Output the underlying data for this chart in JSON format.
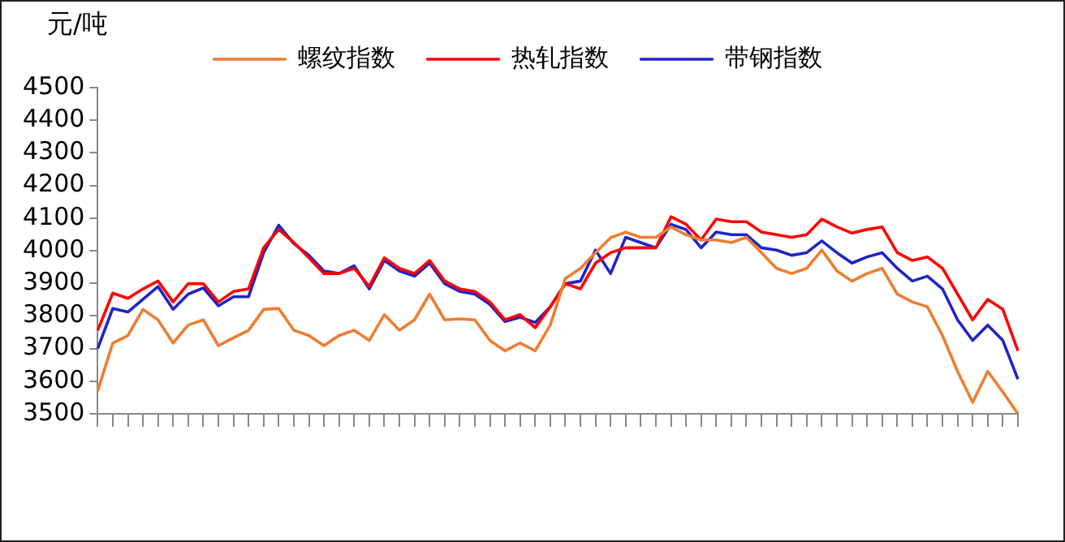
{
  "chart_data": {
    "type": "line",
    "ylabel": "元/吨",
    "categories": [
      null,
      null,
      null,
      null,
      null,
      null,
      null,
      null,
      null,
      null,
      null,
      null,
      null,
      null,
      null,
      null,
      null,
      null,
      null,
      null,
      null,
      null,
      null,
      null,
      null,
      null,
      null,
      null,
      null,
      null,
      null,
      null,
      null,
      null,
      null,
      null,
      null,
      null,
      null,
      null,
      null,
      null,
      null,
      null,
      null,
      null,
      null,
      null,
      null,
      null,
      null,
      null,
      null,
      null,
      null,
      null,
      null,
      null,
      null,
      null,
      null,
      null
    ],
    "series": [
      {
        "name": "螺纹指数",
        "color": "#ed7d31",
        "values": [
          3570,
          3717,
          3740,
          3820,
          3788,
          3717,
          3772,
          3788,
          3709,
          3733,
          3756,
          3820,
          3823,
          3756,
          3740,
          3709,
          3740,
          3756,
          3725,
          3804,
          3756,
          3788,
          3867,
          3788,
          3791,
          3788,
          3725,
          3693,
          3717,
          3693,
          3772,
          3915,
          3946,
          3994,
          4040,
          4057,
          4041,
          4041,
          4073,
          4049,
          4033,
          4033,
          4025,
          4041,
          3994,
          3946,
          3930,
          3946,
          4002,
          3938,
          3907,
          3930,
          3946,
          3867,
          3843,
          3828,
          3740,
          3630,
          3535,
          3630,
          3567,
          3500
        ]
      },
      {
        "name": "热轧指数",
        "color": "#ff0000",
        "values": [
          3756,
          3870,
          3854,
          3883,
          3907,
          3843,
          3899,
          3899,
          3843,
          3875,
          3883,
          4009,
          4065,
          4025,
          3978,
          3930,
          3930,
          3946,
          3891,
          3978,
          3946,
          3930,
          3970,
          3907,
          3883,
          3875,
          3843,
          3788,
          3804,
          3764,
          3828,
          3899,
          3883,
          3962,
          3994,
          4009,
          4009,
          4009,
          4104,
          4081,
          4033,
          4097,
          4089,
          4089,
          4057,
          4049,
          4041,
          4049,
          4097,
          4073,
          4054,
          4065,
          4073,
          3994,
          3970,
          3981,
          3946,
          3867,
          3788,
          3851,
          3820,
          3693
        ]
      },
      {
        "name": "带钢指数",
        "color": "#1f24c8",
        "values": [
          3700,
          3823,
          3812,
          3851,
          3890,
          3820,
          3867,
          3886,
          3831,
          3859,
          3859,
          3994,
          4078,
          4022,
          3986,
          3938,
          3930,
          3954,
          3883,
          3970,
          3938,
          3922,
          3962,
          3899,
          3875,
          3867,
          3835,
          3783,
          3796,
          3780,
          3828,
          3899,
          3907,
          4002,
          3930,
          4041,
          4025,
          4009,
          4081,
          4065,
          4009,
          4057,
          4049,
          4049,
          4009,
          4002,
          3986,
          3994,
          4030,
          3994,
          3962,
          3981,
          3994,
          3946,
          3907,
          3922,
          3883,
          3788,
          3725,
          3772,
          3725,
          3606
        ]
      }
    ],
    "ylim": [
      3500,
      4500
    ],
    "yticks": [
      3500,
      3600,
      3700,
      3800,
      3900,
      4000,
      4100,
      4200,
      4300,
      4400,
      4500
    ],
    "grid": false,
    "legend": "top",
    "marker": "none",
    "line_style": "solid",
    "tick_labels": "y"
  }
}
